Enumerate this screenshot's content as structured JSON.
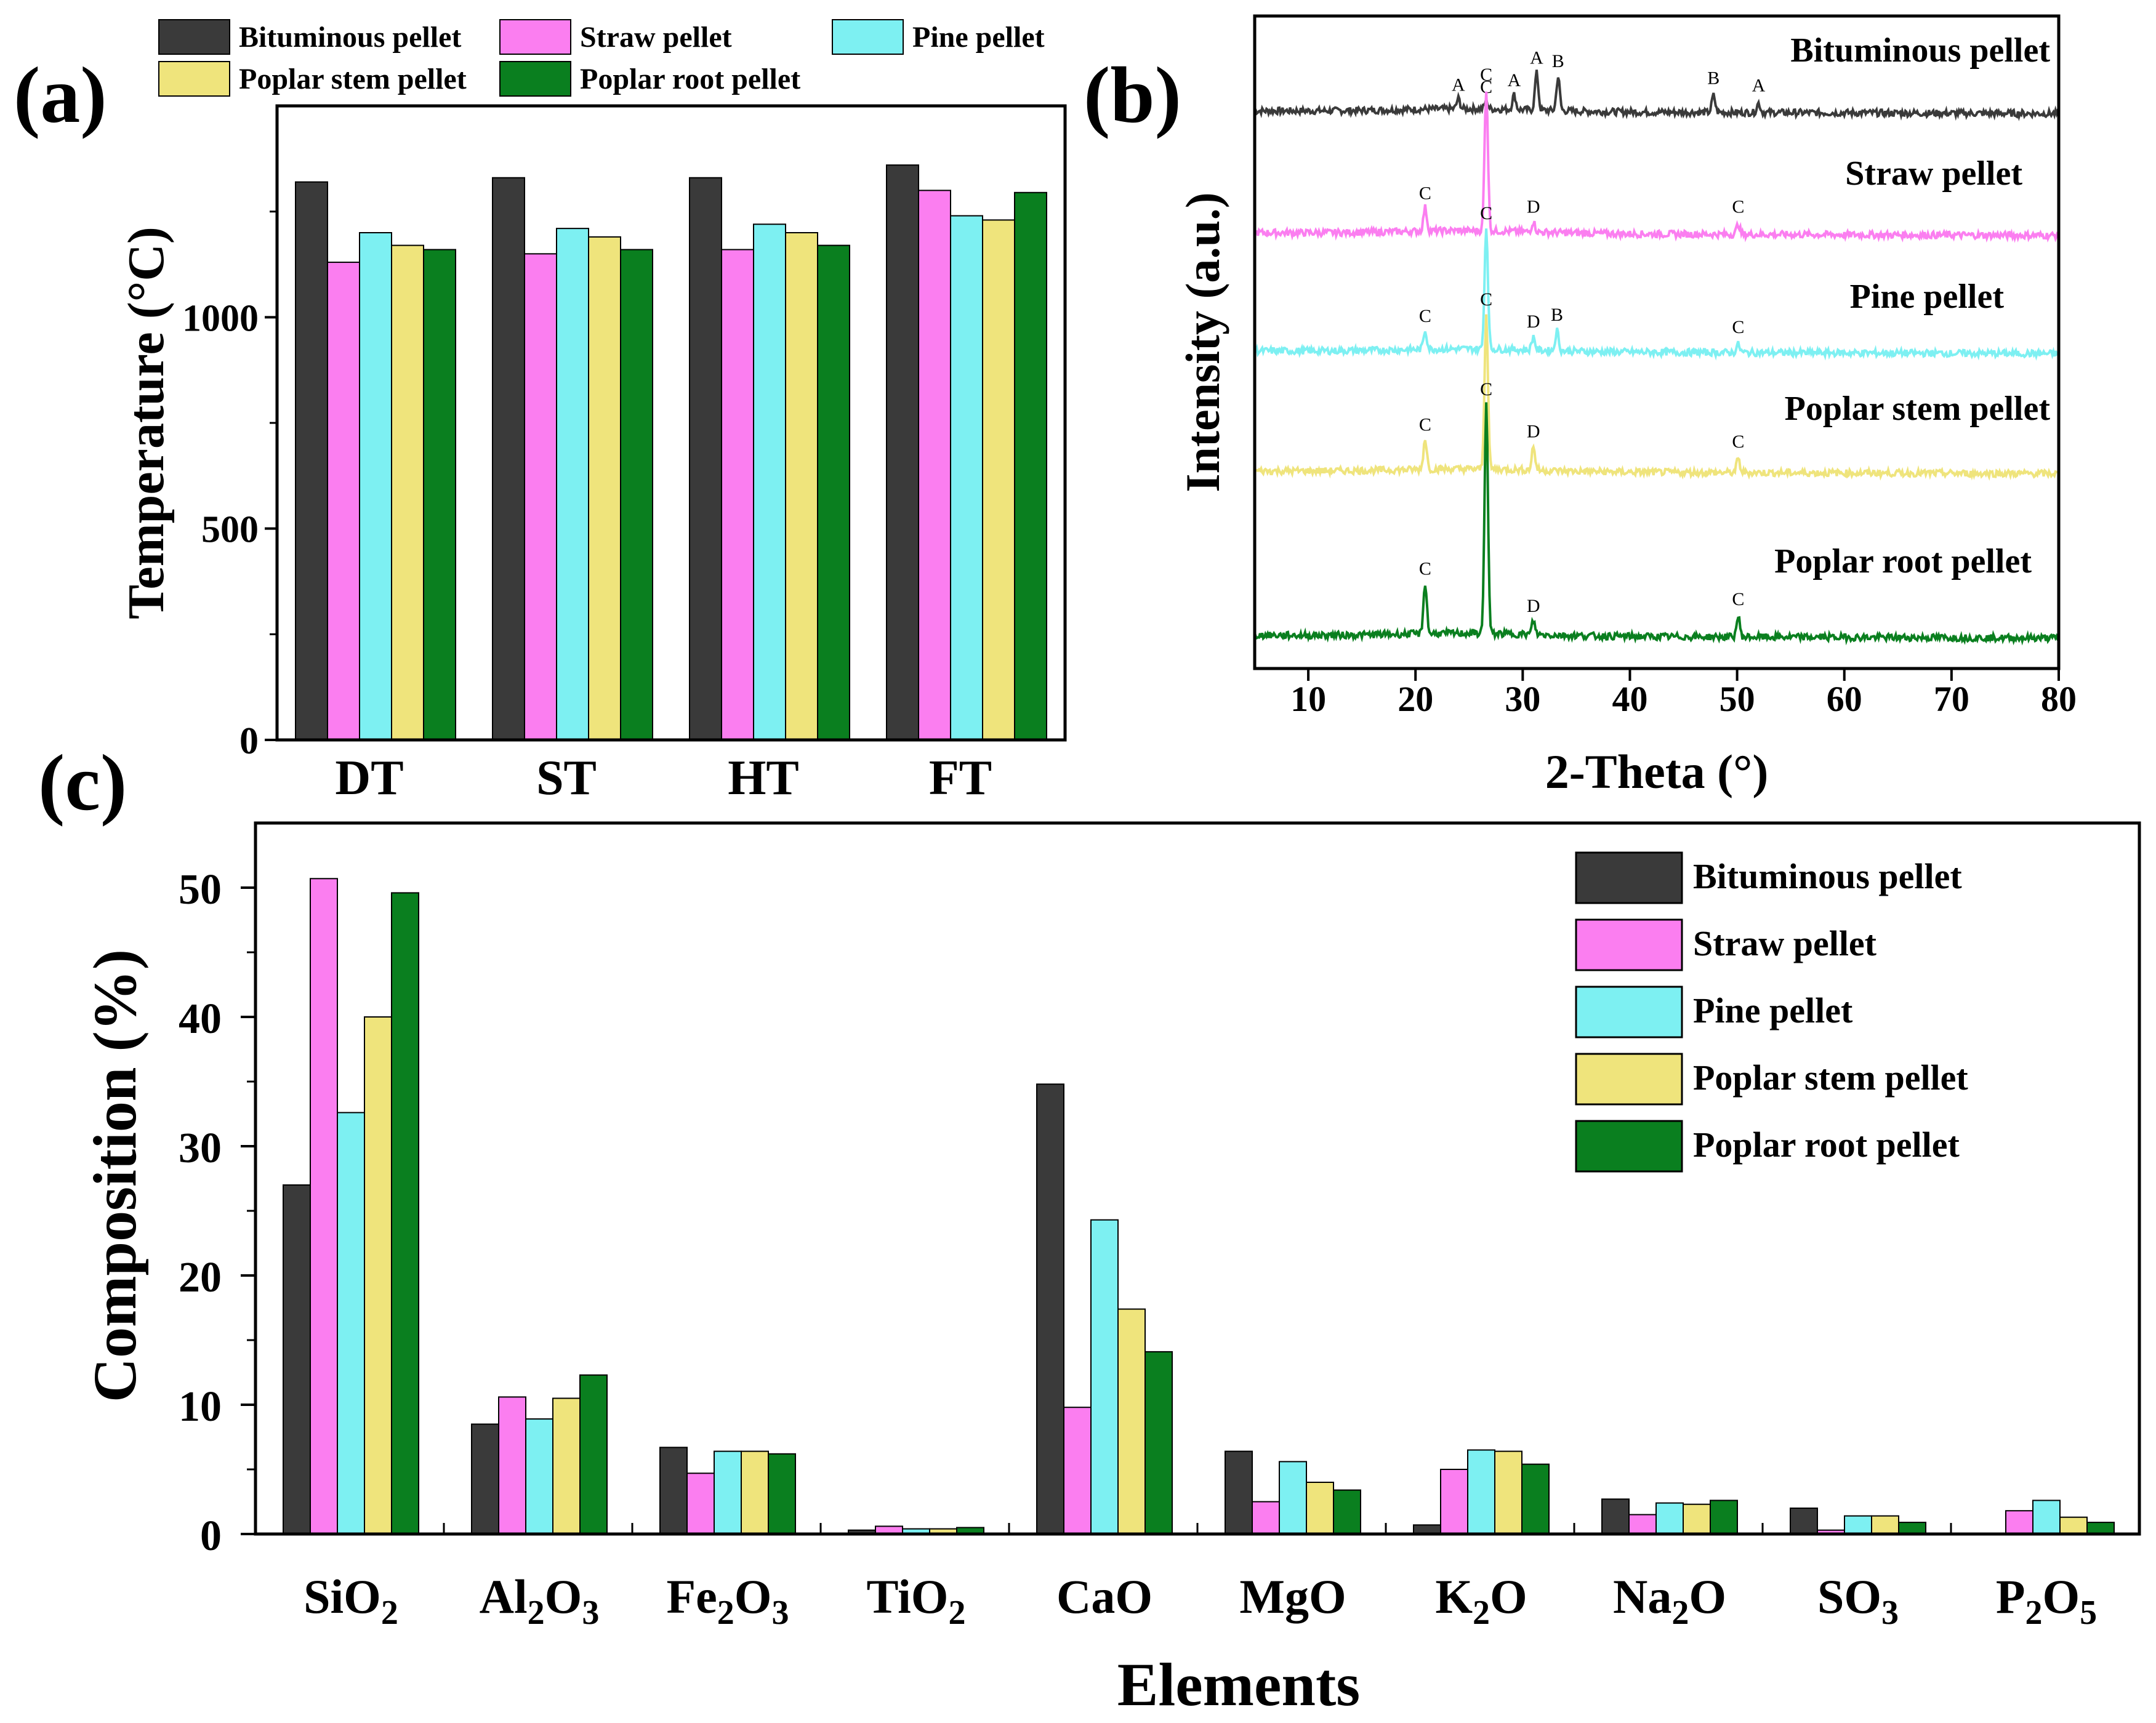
{
  "colors": {
    "series": [
      "#3a3a3a",
      "#fb7ef0",
      "#7df0f2",
      "#efe47c",
      "#0a7f1f"
    ],
    "axis": "#000000"
  },
  "series_names": [
    "Bituminous pellet",
    "Straw pellet",
    "Pine pellet",
    "Poplar stem pellet",
    "Poplar root pellet"
  ],
  "chart_data": [
    {
      "panel": "(a)",
      "type": "bar",
      "categories": [
        "DT",
        "ST",
        "HT",
        "FT"
      ],
      "series": [
        {
          "name": "Bituminous pellet",
          "values": [
            1320,
            1330,
            1330,
            1360
          ]
        },
        {
          "name": "Straw pellet",
          "values": [
            1130,
            1150,
            1160,
            1300
          ]
        },
        {
          "name": "Pine pellet",
          "values": [
            1200,
            1210,
            1220,
            1240
          ]
        },
        {
          "name": "Poplar stem pellet",
          "values": [
            1170,
            1190,
            1200,
            1230
          ]
        },
        {
          "name": "Poplar root pellet",
          "values": [
            1160,
            1160,
            1170,
            1295
          ]
        }
      ],
      "xlabel": "",
      "ylabel": "Temperature (°C)",
      "ylim": [
        0,
        1500
      ],
      "yticks": [
        "0",
        "500",
        "1000"
      ],
      "legend": "top-outside"
    },
    {
      "panel": "(b)",
      "type": "line",
      "xlabel": "2-Theta (°)",
      "ylabel": "Intensity (a.u.)",
      "xlim": [
        5,
        80
      ],
      "xticks": [
        "10",
        "20",
        "30",
        "40",
        "50",
        "60",
        "70",
        "80"
      ],
      "traces": [
        {
          "name": "Bituminous pellet",
          "peaks": [
            [
              24,
              0.15,
              "A"
            ],
            [
              26.6,
              0.12,
              "C"
            ],
            [
              29.2,
              0.22,
              "A"
            ],
            [
              31.3,
              0.55,
              "A"
            ],
            [
              33.3,
              0.5,
              "B"
            ],
            [
              47.8,
              0.25,
              "B"
            ],
            [
              52,
              0.14,
              "A"
            ]
          ]
        },
        {
          "name": "Straw pellet",
          "peaks": [
            [
              20.9,
              0.35,
              "C"
            ],
            [
              26.6,
              2.1,
              "C"
            ],
            [
              31,
              0.15,
              "D"
            ],
            [
              50.1,
              0.15,
              "C"
            ]
          ]
        },
        {
          "name": "Pine pellet",
          "peaks": [
            [
              20.9,
              0.28,
              "C"
            ],
            [
              26.6,
              1.8,
              "C"
            ],
            [
              31,
              0.2,
              "D"
            ],
            [
              33.2,
              0.3,
              "B"
            ],
            [
              50.1,
              0.12,
              "C"
            ]
          ]
        },
        {
          "name": "Poplar stem pellet",
          "peaks": [
            [
              20.9,
              0.45,
              "C"
            ],
            [
              26.6,
              2.3,
              "C"
            ],
            [
              31,
              0.35,
              "D"
            ],
            [
              50.1,
              0.2,
              "C"
            ]
          ]
        },
        {
          "name": "Poplar root pellet",
          "peaks": [
            [
              20.9,
              0.75,
              "C"
            ],
            [
              26.6,
              3.4,
              "C"
            ],
            [
              31,
              0.2,
              "D"
            ],
            [
              50.1,
              0.3,
              "C"
            ]
          ]
        }
      ]
    },
    {
      "panel": "(c)",
      "type": "bar",
      "categories": [
        "SiO2",
        "Al2O3",
        "Fe2O3",
        "TiO2",
        "CaO",
        "MgO",
        "K2O",
        "Na2O",
        "SO3",
        "P2O5"
      ],
      "series": [
        {
          "name": "Bituminous pellet",
          "values": [
            27.0,
            8.5,
            6.7,
            0.3,
            34.8,
            6.4,
            0.7,
            2.7,
            2.0,
            0.0
          ]
        },
        {
          "name": "Straw pellet",
          "values": [
            50.7,
            10.6,
            4.7,
            0.6,
            9.8,
            2.5,
            5.0,
            1.5,
            0.3,
            1.8
          ]
        },
        {
          "name": "Pine pellet",
          "values": [
            32.6,
            8.9,
            6.4,
            0.4,
            24.3,
            5.6,
            6.5,
            2.4,
            1.4,
            2.6
          ]
        },
        {
          "name": "Poplar stem pellet",
          "values": [
            40.0,
            10.5,
            6.4,
            0.4,
            17.4,
            4.0,
            6.4,
            2.3,
            1.4,
            1.3
          ]
        },
        {
          "name": "Poplar root pellet",
          "values": [
            49.6,
            12.3,
            6.2,
            0.5,
            14.1,
            3.4,
            5.4,
            2.6,
            0.9,
            0.9
          ]
        }
      ],
      "xlabel": "Elements",
      "ylabel": "Composition (%)",
      "ylim": [
        0,
        55
      ],
      "yticks": [
        "0",
        "10",
        "20",
        "30",
        "40",
        "50"
      ],
      "legend": "top-right"
    }
  ],
  "labels": {
    "panel_a": "(a)",
    "panel_b": "(b)",
    "panel_c": "(c)",
    "c_categories": [
      {
        "main": "SiO",
        "sub": "2",
        "tail": "",
        "sub2": ""
      },
      {
        "main": "Al",
        "sub": "2",
        "tail": "O",
        "sub2": "3"
      },
      {
        "main": "Fe",
        "sub": "2",
        "tail": "O",
        "sub2": "3"
      },
      {
        "main": "TiO",
        "sub": "2",
        "tail": "",
        "sub2": ""
      },
      {
        "main": "CaO",
        "sub": "",
        "tail": "",
        "sub2": ""
      },
      {
        "main": "MgO",
        "sub": "",
        "tail": "",
        "sub2": ""
      },
      {
        "main": "K",
        "sub": "2",
        "tail": "O",
        "sub2": ""
      },
      {
        "main": "Na",
        "sub": "2",
        "tail": "O",
        "sub2": ""
      },
      {
        "main": "SO",
        "sub": "3",
        "tail": "",
        "sub2": ""
      },
      {
        "main": "P",
        "sub": "2",
        "tail": "O",
        "sub2": "5"
      }
    ]
  }
}
